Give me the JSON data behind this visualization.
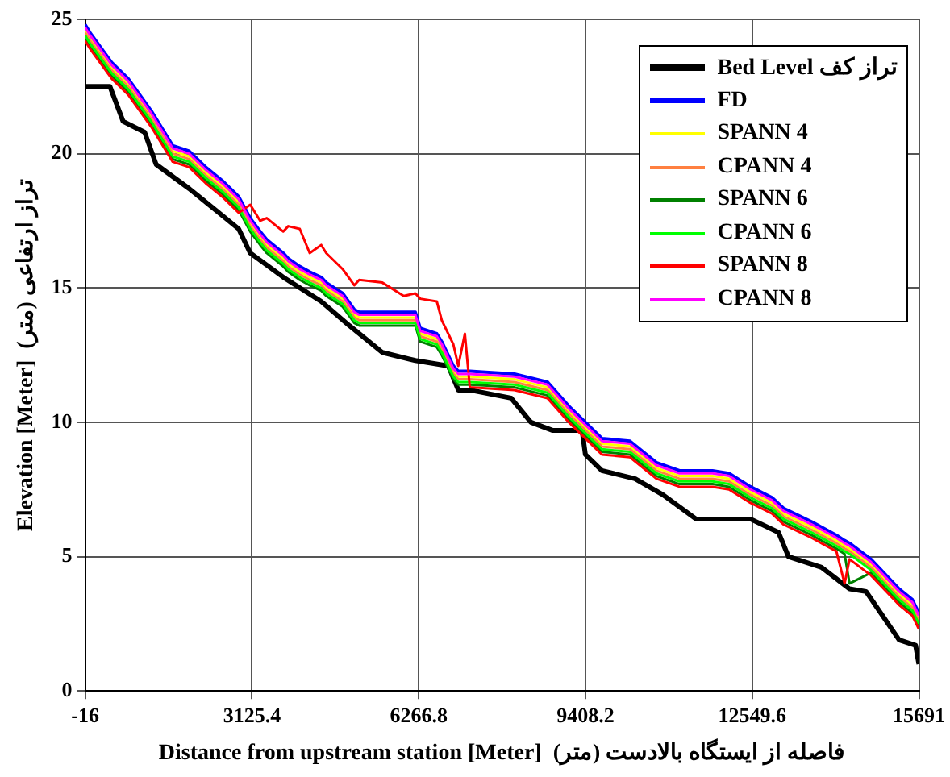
{
  "chart_data": {
    "type": "line",
    "xlabel": "Distance from upstream station [Meter]  فاصله از ایستگاه بالادست (متر)",
    "ylabel": "Elevation [Meter]  تراز ارتفاعی (متر)",
    "xlim": [
      -16,
      15691
    ],
    "xticks": [
      -16,
      3125.4,
      6266.8,
      9408.2,
      12549.6,
      15691
    ],
    "ylim": [
      0,
      25
    ],
    "yticks": [
      0,
      5,
      10,
      15,
      20,
      25
    ],
    "grid": true,
    "legend": "top right",
    "marker": "none",
    "line_style": "solid",
    "x": [
      -16,
      77,
      482,
      793,
      1228,
      1632,
      1943,
      2254,
      2565,
      2876,
      3094,
      3281,
      3405,
      3716,
      3809,
      4027,
      4214,
      4431,
      4525,
      4836,
      5053,
      5147,
      5582,
      5986,
      6204,
      6297,
      6608,
      6702,
      6920,
      7013,
      7137,
      7230,
      8070,
      8692,
      9096,
      9407,
      9719,
      10247,
      10745,
      11180,
      11802,
      12113,
      12517,
      12922,
      13139,
      13668,
      14135,
      14290,
      14384,
      14788,
      15317,
      15566,
      15690
    ],
    "series": [
      {
        "name": "Bed Level تراز کف",
        "color": "#000000",
        "x": [
          -16,
          451,
          699,
          1104,
          1321,
          1943,
          2565,
          2876,
          3094,
          3716,
          4431,
          4960,
          5582,
          6204,
          6826,
          7013,
          7230,
          8008,
          8381,
          8785,
          9345,
          9407,
          9719,
          10341,
          10869,
          11491,
          12517,
          13046,
          13233,
          13855,
          14384,
          14695,
          15006,
          15317,
          15627,
          15690
        ],
        "values": [
          22.5,
          22.5,
          21.2,
          20.8,
          19.6,
          18.7,
          17.7,
          17.2,
          16.3,
          15.4,
          14.5,
          13.6,
          12.6,
          12.3,
          12.1,
          11.2,
          11.2,
          10.9,
          10.0,
          9.7,
          9.7,
          8.8,
          8.2,
          7.9,
          7.3,
          6.4,
          6.4,
          5.9,
          5.0,
          4.6,
          3.8,
          3.7,
          2.8,
          1.9,
          1.7,
          1.0
        ]
      },
      {
        "name": "FD",
        "color": "#0000ff",
        "values": [
          24.8,
          24.5,
          23.4,
          22.8,
          21.6,
          20.3,
          20.1,
          19.5,
          19.0,
          18.4,
          17.6,
          17.1,
          16.8,
          16.3,
          16.1,
          15.8,
          15.6,
          15.4,
          15.2,
          14.8,
          14.2,
          14.1,
          14.1,
          14.1,
          14.1,
          13.5,
          13.3,
          13.0,
          12.1,
          11.9,
          11.9,
          11.9,
          11.8,
          11.5,
          10.6,
          10.0,
          9.4,
          9.3,
          8.5,
          8.2,
          8.2,
          8.1,
          7.6,
          7.2,
          6.8,
          6.3,
          5.8,
          5.6,
          5.5,
          4.9,
          3.8,
          3.4,
          2.9
        ]
      },
      {
        "name": "SPANN 4",
        "color": "#ffff00",
        "values": [
          24.6,
          24.3,
          23.2,
          22.6,
          21.4,
          20.1,
          19.9,
          19.3,
          18.8,
          18.2,
          17.4,
          16.9,
          16.6,
          16.1,
          15.9,
          15.6,
          15.4,
          15.2,
          15.0,
          14.6,
          14.0,
          13.9,
          13.9,
          13.9,
          13.9,
          13.3,
          13.1,
          12.8,
          11.9,
          11.7,
          11.7,
          11.7,
          11.6,
          11.3,
          10.4,
          9.8,
          9.2,
          9.1,
          8.3,
          8.0,
          8.0,
          7.9,
          7.4,
          7.0,
          6.6,
          6.1,
          5.6,
          5.4,
          5.3,
          4.7,
          3.6,
          3.2,
          2.7
        ]
      },
      {
        "name": "CPANN 4",
        "color": "#ff8040",
        "values": [
          24.5,
          24.2,
          23.1,
          22.5,
          21.3,
          20.0,
          19.8,
          19.2,
          18.7,
          18.1,
          17.3,
          16.8,
          16.5,
          16.0,
          15.8,
          15.5,
          15.3,
          15.1,
          14.9,
          14.5,
          13.9,
          13.8,
          13.8,
          13.8,
          13.8,
          13.2,
          13.0,
          12.7,
          11.8,
          11.6,
          11.6,
          11.6,
          11.5,
          11.2,
          10.3,
          9.7,
          9.1,
          9.0,
          8.2,
          7.9,
          7.9,
          7.8,
          7.3,
          6.9,
          6.5,
          6.0,
          5.5,
          5.3,
          5.2,
          4.6,
          3.5,
          3.1,
          2.6
        ]
      },
      {
        "name": "SPANN 6",
        "color": "#008000",
        "values": [
          24.3,
          24.0,
          22.9,
          22.3,
          21.1,
          19.8,
          19.6,
          19.0,
          18.5,
          17.9,
          17.1,
          16.6,
          16.3,
          15.8,
          15.6,
          15.3,
          15.1,
          14.9,
          14.7,
          14.3,
          13.7,
          13.6,
          13.6,
          13.6,
          13.6,
          13.0,
          12.8,
          12.5,
          11.6,
          11.4,
          11.4,
          11.4,
          11.3,
          11.0,
          10.1,
          9.5,
          8.9,
          8.8,
          8.0,
          7.7,
          7.7,
          7.6,
          7.1,
          6.7,
          6.3,
          5.8,
          5.3,
          5.1,
          4.0,
          4.4,
          3.3,
          2.9,
          2.4
        ]
      },
      {
        "name": "CPANN 6",
        "color": "#00ff00",
        "values": [
          24.4,
          24.1,
          23.0,
          22.4,
          21.2,
          19.9,
          19.7,
          19.1,
          18.6,
          18.0,
          17.2,
          16.7,
          16.4,
          15.9,
          15.7,
          15.4,
          15.2,
          15.0,
          14.8,
          14.4,
          13.8,
          13.7,
          13.7,
          13.7,
          13.7,
          13.1,
          12.9,
          12.6,
          11.7,
          11.5,
          11.5,
          11.5,
          11.4,
          11.1,
          10.2,
          9.6,
          9.0,
          8.9,
          8.1,
          7.8,
          7.8,
          7.7,
          7.2,
          6.8,
          6.4,
          5.9,
          5.4,
          5.2,
          5.1,
          4.5,
          3.4,
          3.0,
          2.5
        ]
      },
      {
        "name": "SPANN 8",
        "color": "#ff0000",
        "values": [
          24.2,
          23.9,
          22.8,
          22.2,
          21.0,
          19.7,
          19.5,
          18.9,
          18.4,
          17.8,
          18.1,
          17.5,
          17.6,
          17.1,
          17.3,
          17.2,
          16.3,
          16.6,
          16.3,
          15.7,
          15.1,
          15.3,
          15.2,
          14.7,
          14.8,
          14.6,
          14.5,
          13.8,
          12.9,
          12.1,
          13.3,
          11.3,
          11.2,
          10.9,
          10.0,
          9.4,
          8.8,
          8.7,
          7.9,
          7.6,
          7.6,
          7.5,
          7.0,
          6.6,
          6.2,
          5.7,
          5.2,
          4.0,
          4.9,
          4.3,
          3.2,
          2.8,
          2.3
        ]
      },
      {
        "name": "CPANN 8",
        "color": "#ff00ff",
        "values": [
          24.7,
          24.4,
          23.3,
          22.7,
          21.5,
          20.2,
          20.0,
          19.4,
          18.9,
          18.3,
          17.5,
          17.0,
          16.7,
          16.2,
          16.0,
          15.7,
          15.5,
          15.3,
          15.1,
          14.7,
          14.1,
          14.0,
          14.0,
          14.0,
          14.0,
          13.4,
          13.2,
          12.9,
          12.0,
          11.8,
          11.8,
          11.8,
          11.7,
          11.4,
          10.5,
          9.9,
          9.3,
          9.2,
          8.4,
          8.1,
          8.1,
          8.0,
          7.5,
          7.1,
          6.7,
          6.2,
          5.7,
          5.5,
          5.4,
          4.8,
          3.7,
          3.3,
          2.8
        ]
      }
    ]
  }
}
